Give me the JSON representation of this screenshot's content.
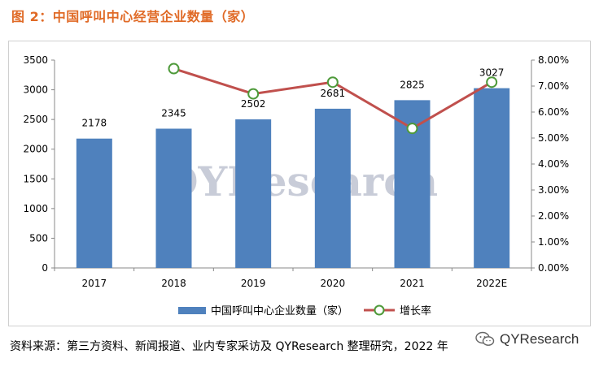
{
  "figure": {
    "title": "图 2：中国呼叫中心经营企业数量（家）",
    "source": "资料来源：第三方资料、新闻报道、业内专家采访及 QYResearch 整理研究，2022 年",
    "watermark": "QYResearch",
    "brand": "QYResearch"
  },
  "colors": {
    "bar": "#4f81bd",
    "line": "#c0504d",
    "marker_fill": "#ffffff",
    "marker_stroke": "#4e9a3a",
    "title": "#e06a26",
    "watermark": "#9aa3b8"
  },
  "chart_data": {
    "type": "bar",
    "categories": [
      "2017",
      "2018",
      "2019",
      "2020",
      "2021",
      "2022E"
    ],
    "series": [
      {
        "name": "中国呼叫中心企业数量（家）",
        "type": "bar",
        "axis": "left",
        "values": [
          2178,
          2345,
          2502,
          2681,
          2825,
          3027
        ],
        "labels": [
          "2178",
          "2345",
          "2502",
          "2681",
          "2825",
          "3027"
        ]
      },
      {
        "name": "增长率",
        "type": "line",
        "axis": "right",
        "values": [
          null,
          7.67,
          6.7,
          7.15,
          5.37,
          7.15
        ]
      }
    ],
    "y_left": {
      "min": 0,
      "max": 3500,
      "ticks": [
        "0",
        "500",
        "1000",
        "1500",
        "2000",
        "2500",
        "3000",
        "3500"
      ]
    },
    "y_right": {
      "min": 0,
      "max": 8,
      "unit": "%",
      "ticks": [
        "0.00%",
        "1.00%",
        "2.00%",
        "3.00%",
        "4.00%",
        "5.00%",
        "6.00%",
        "7.00%",
        "8.00%"
      ]
    },
    "grid": false,
    "legend": "bottom"
  }
}
